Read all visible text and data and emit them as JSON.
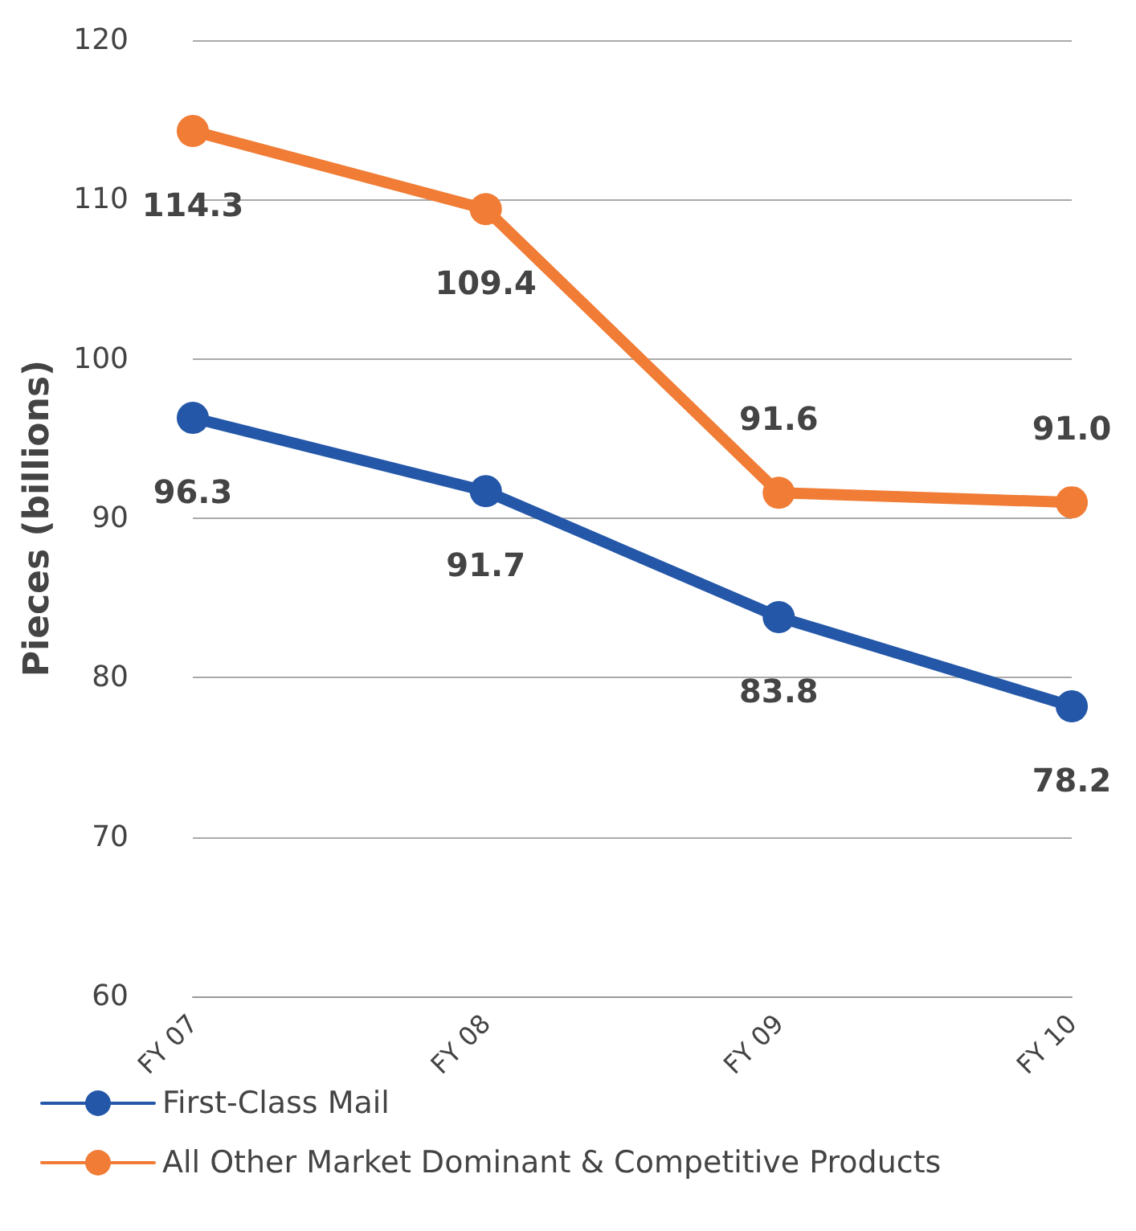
{
  "chart_data": {
    "type": "line",
    "ylabel": "Pieces (billions)",
    "categories": [
      "FY 07",
      "FY 08",
      "FY 09",
      "FY 10"
    ],
    "series": [
      {
        "name": "First-Class Mail",
        "color": "#2457a8",
        "values": [
          96.3,
          91.7,
          83.8,
          78.2
        ],
        "value_labels": [
          "96.3",
          "91.7",
          "83.8",
          "78.2"
        ]
      },
      {
        "name": "All Other Market Dominant & Competitive Products",
        "color": "#f07c35",
        "values": [
          114.3,
          109.4,
          91.6,
          91.0
        ],
        "value_labels": [
          "114.3",
          "109.4",
          "91.6",
          "91.0"
        ]
      }
    ],
    "ylim": [
      60,
      120
    ],
    "yticks": [
      60,
      70,
      80,
      90,
      100,
      110,
      120
    ],
    "grid": "y",
    "legend": "bottom left",
    "marker": "circle",
    "line_style": "solid"
  }
}
